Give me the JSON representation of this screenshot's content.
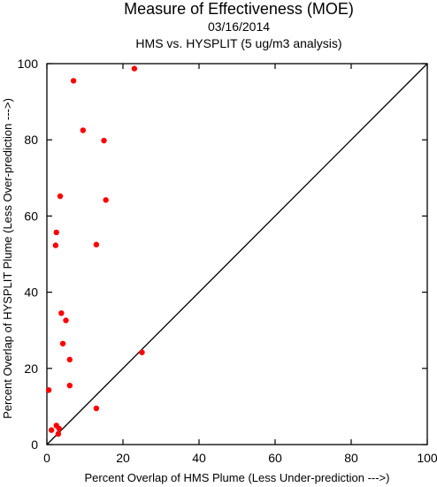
{
  "chart_data": {
    "type": "scatter",
    "title": "Measure of Effectiveness (MOE)",
    "subtitle_date": "03/16/2014",
    "subtitle": "HMS vs. HYSPLIT  (5 ug/m3 analysis)",
    "xlabel": "Percent Overlap of HMS Plume (Less Under-prediction --->)",
    "ylabel": "Percent Overlap of HYSPLIT Plume (Less Over-prediction --->)",
    "xlim": [
      0,
      100
    ],
    "ylim": [
      0,
      100
    ],
    "xticks": [
      0,
      20,
      40,
      60,
      80,
      100
    ],
    "yticks": [
      0,
      20,
      40,
      60,
      80,
      100
    ],
    "reference_line": "1:1 diagonal",
    "grid": false,
    "point_color": "#ff0000",
    "series": [
      {
        "points": [
          {
            "x": 23.0,
            "y": 98.7
          },
          {
            "x": 7.0,
            "y": 95.5
          },
          {
            "x": 9.5,
            "y": 82.5
          },
          {
            "x": 15.0,
            "y": 79.8
          },
          {
            "x": 3.5,
            "y": 65.2
          },
          {
            "x": 15.5,
            "y": 64.2
          },
          {
            "x": 2.5,
            "y": 55.7
          },
          {
            "x": 2.3,
            "y": 52.3
          },
          {
            "x": 13.0,
            "y": 52.5
          },
          {
            "x": 3.8,
            "y": 34.5
          },
          {
            "x": 5.0,
            "y": 32.6
          },
          {
            "x": 4.2,
            "y": 26.5
          },
          {
            "x": 25.0,
            "y": 24.2
          },
          {
            "x": 6.0,
            "y": 22.3
          },
          {
            "x": 6.0,
            "y": 15.5
          },
          {
            "x": 0.5,
            "y": 14.3
          },
          {
            "x": 13.0,
            "y": 9.5
          },
          {
            "x": 2.5,
            "y": 5.0
          },
          {
            "x": 3.2,
            "y": 4.2
          },
          {
            "x": 1.2,
            "y": 3.8
          },
          {
            "x": 3.0,
            "y": 2.8
          }
        ]
      }
    ]
  }
}
